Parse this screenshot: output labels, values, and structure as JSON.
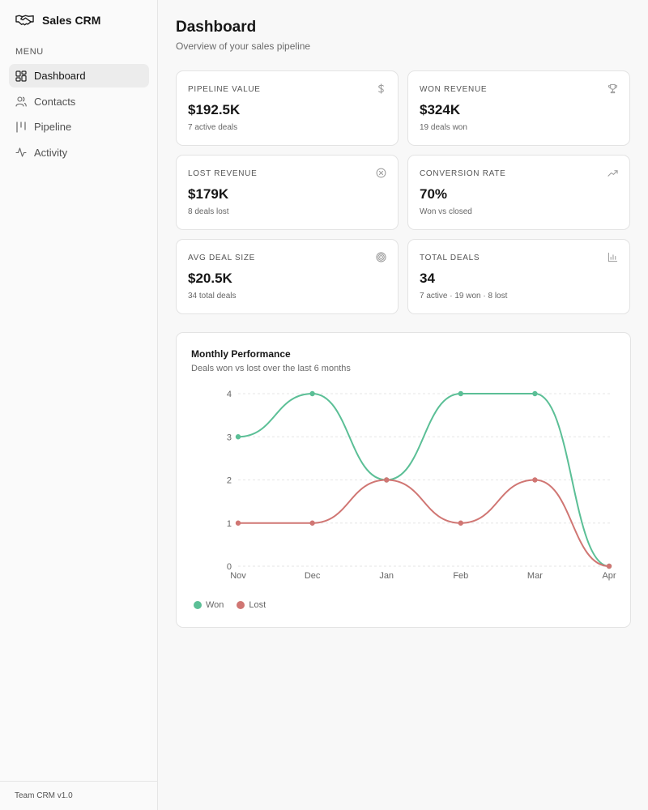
{
  "app": {
    "name": "Sales CRM",
    "footer": "Team CRM v1.0"
  },
  "sidebar": {
    "menu_heading": "MENU",
    "items": [
      {
        "label": "Dashboard",
        "icon": "dashboard-icon",
        "active": true
      },
      {
        "label": "Contacts",
        "icon": "users-icon",
        "active": false
      },
      {
        "label": "Pipeline",
        "icon": "pipeline-icon",
        "active": false
      },
      {
        "label": "Activity",
        "icon": "activity-icon",
        "active": false
      }
    ]
  },
  "header": {
    "title": "Dashboard",
    "subtitle": "Overview of your sales pipeline"
  },
  "stats": [
    {
      "label": "PIPELINE VALUE",
      "value": "$192.5K",
      "sub": "7 active deals",
      "icon": "dollar-icon"
    },
    {
      "label": "WON REVENUE",
      "value": "$324K",
      "sub": "19 deals won",
      "icon": "trophy-icon"
    },
    {
      "label": "LOST REVENUE",
      "value": "$179K",
      "sub": "8 deals lost",
      "icon": "x-circle-icon"
    },
    {
      "label": "CONVERSION RATE",
      "value": "70%",
      "sub": "Won vs closed",
      "icon": "trending-up-icon"
    },
    {
      "label": "AVG DEAL SIZE",
      "value": "$20.5K",
      "sub": "34 total deals",
      "icon": "target-icon"
    },
    {
      "label": "TOTAL DEALS",
      "value": "34",
      "sub": "7 active · 19 won · 8 lost",
      "icon": "bar-chart-icon"
    }
  ],
  "chart": {
    "title": "Monthly Performance",
    "subtitle": "Deals won vs lost over the last 6 months"
  },
  "chart_data": {
    "type": "line",
    "x": [
      "Nov",
      "Dec",
      "Jan",
      "Feb",
      "Mar",
      "Apr"
    ],
    "series": [
      {
        "name": "Won",
        "values": [
          3,
          4,
          2,
          4,
          4,
          0
        ],
        "color": "#5bbf96"
      },
      {
        "name": "Lost",
        "values": [
          1,
          1,
          2,
          1,
          2,
          0
        ],
        "color": "#d07673"
      }
    ],
    "ylim": [
      0,
      4
    ],
    "yticks": [
      "0",
      "1",
      "2",
      "3",
      "4"
    ],
    "grid": true,
    "curve": "smooth",
    "legend": "bottom-left"
  }
}
